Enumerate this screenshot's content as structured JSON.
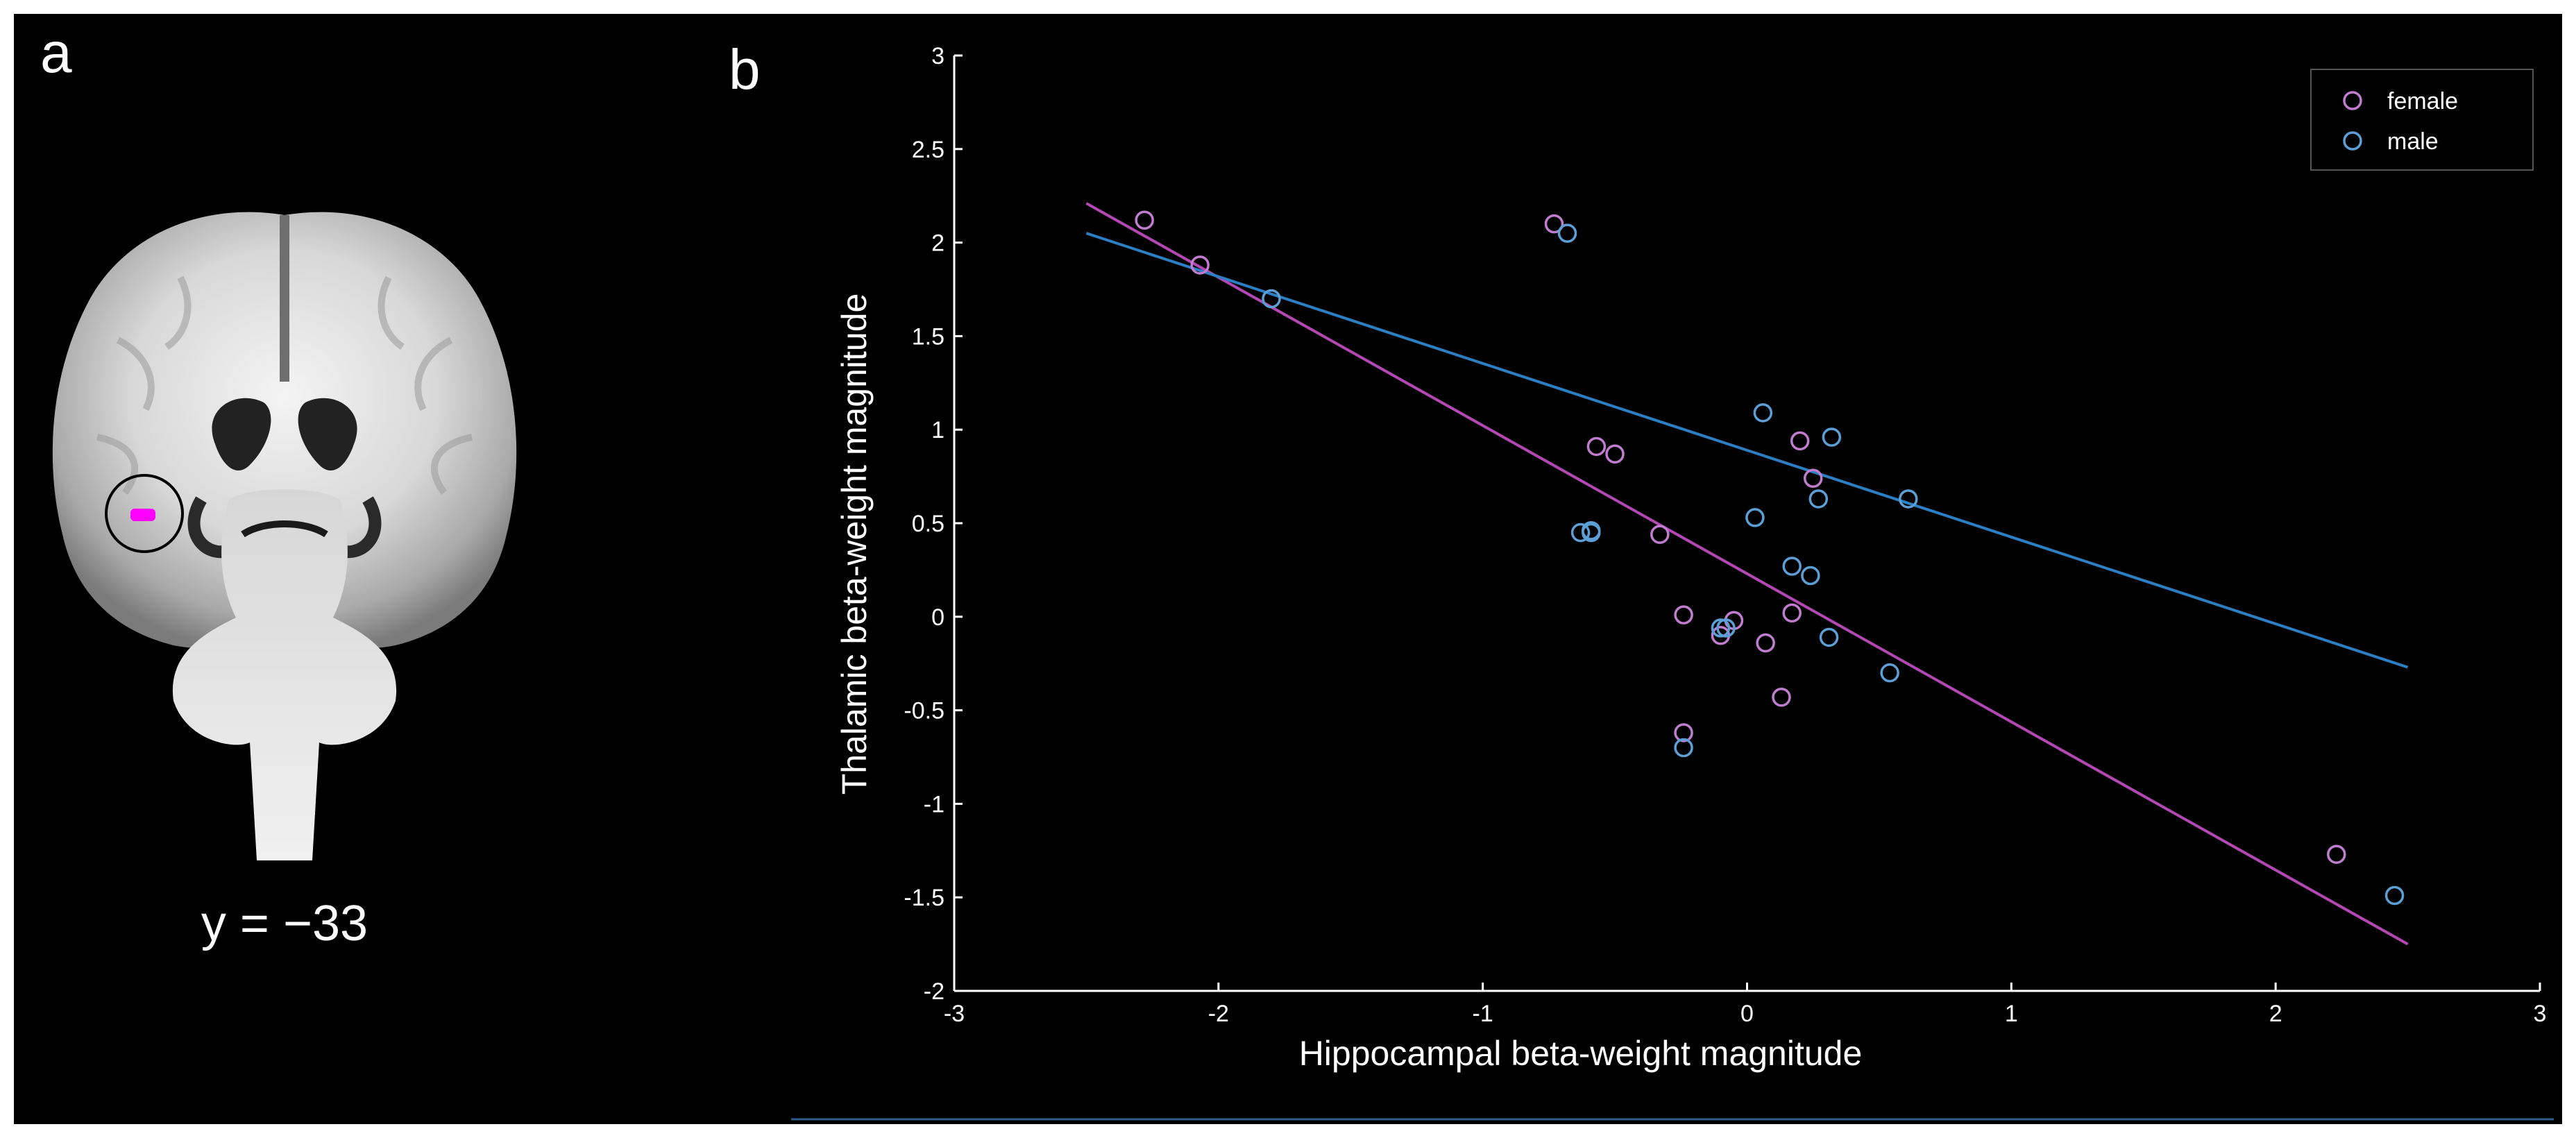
{
  "panels": {
    "a": {
      "letter": "a",
      "slice_label": "y = −33"
    },
    "b": {
      "letter": "b"
    }
  },
  "colors": {
    "female": "#b347b3",
    "male": "#2d7fc4",
    "female_marker": "#c07ccf",
    "male_marker": "#5c9fd6",
    "roi": "#ff00ff"
  },
  "chart_data": {
    "type": "scatter",
    "title": "",
    "xlabel": "Hippocampal beta-weight magnitude",
    "ylabel": "Thalamic beta-weight magnitude",
    "xlim": [
      -3,
      3
    ],
    "ylim": [
      -2,
      3
    ],
    "xticks": [
      -3,
      -2,
      -1,
      0,
      1,
      2,
      3
    ],
    "yticks": [
      -2,
      -1.5,
      -1,
      -0.5,
      0,
      0.5,
      1,
      1.5,
      2,
      2.5,
      3
    ],
    "legend_position": "top-right",
    "series": [
      {
        "name": "female",
        "color_key": "female",
        "points": [
          [
            -2.28,
            2.12
          ],
          [
            -2.07,
            1.88
          ],
          [
            -0.73,
            2.1
          ],
          [
            -0.57,
            0.91
          ],
          [
            -0.5,
            0.87
          ],
          [
            -0.33,
            0.44
          ],
          [
            -0.24,
            0.01
          ],
          [
            -0.24,
            -0.62
          ],
          [
            -0.1,
            -0.1
          ],
          [
            -0.05,
            -0.02
          ],
          [
            0.07,
            -0.14
          ],
          [
            0.13,
            -0.43
          ],
          [
            0.17,
            0.02
          ],
          [
            0.2,
            0.94
          ],
          [
            0.25,
            0.74
          ],
          [
            2.23,
            -1.27
          ]
        ],
        "fit": {
          "x": [
            -2.5,
            2.5
          ],
          "y": [
            2.21,
            -1.75
          ]
        }
      },
      {
        "name": "male",
        "color_key": "male",
        "points": [
          [
            -1.8,
            1.7
          ],
          [
            -0.68,
            2.05
          ],
          [
            -0.63,
            0.45
          ],
          [
            -0.59,
            0.46
          ],
          [
            -0.59,
            0.45
          ],
          [
            -0.24,
            -0.7
          ],
          [
            -0.1,
            -0.06
          ],
          [
            -0.08,
            -0.06
          ],
          [
            0.03,
            0.53
          ],
          [
            0.06,
            1.09
          ],
          [
            0.17,
            0.27
          ],
          [
            0.24,
            0.22
          ],
          [
            0.27,
            0.63
          ],
          [
            0.31,
            -0.11
          ],
          [
            0.32,
            0.96
          ],
          [
            0.54,
            -0.3
          ],
          [
            0.61,
            0.63
          ],
          [
            2.45,
            -1.49
          ]
        ],
        "fit": {
          "x": [
            -2.5,
            2.5
          ],
          "y": [
            2.05,
            -0.27
          ]
        }
      }
    ]
  }
}
